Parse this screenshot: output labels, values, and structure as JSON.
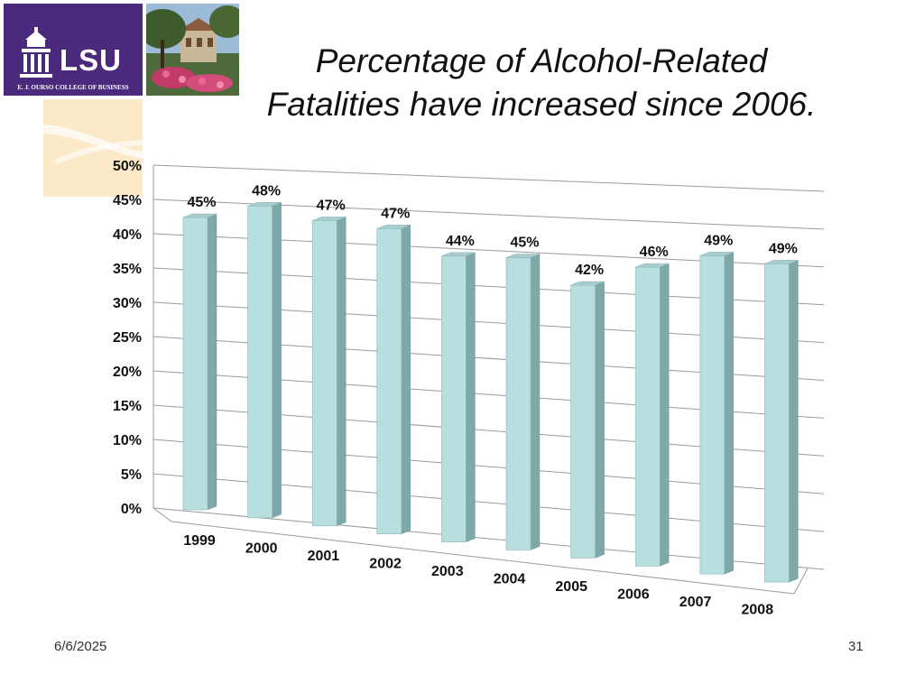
{
  "logo": {
    "text": "LSU",
    "subtitle": "E. J. OURSO COLLEGE OF BUSINESS",
    "brand_color": "#4b2a7e"
  },
  "slide": {
    "title_line1": "Percentage of Alcohol-Related",
    "title_line2": "Fatalities have increased since 2006."
  },
  "chart_data": {
    "type": "bar",
    "style": "3d-column",
    "categories": [
      "1999",
      "2000",
      "2001",
      "2002",
      "2003",
      "2004",
      "2005",
      "2006",
      "2007",
      "2008"
    ],
    "values": [
      45,
      48,
      47,
      47,
      44,
      45,
      42,
      46,
      49,
      49
    ],
    "data_labels": [
      "45%",
      "48%",
      "47%",
      "47%",
      "44%",
      "45%",
      "42%",
      "46%",
      "49%",
      "49%"
    ],
    "y_ticks": [
      "0%",
      "5%",
      "10%",
      "15%",
      "20%",
      "25%",
      "30%",
      "35%",
      "40%",
      "45%",
      "50%"
    ],
    "ylim": [
      0,
      50
    ],
    "grid": true,
    "legend": "none",
    "bar_color": "#b8dfe0"
  },
  "footer": {
    "date": "6/6/2025",
    "page_number": "31"
  }
}
